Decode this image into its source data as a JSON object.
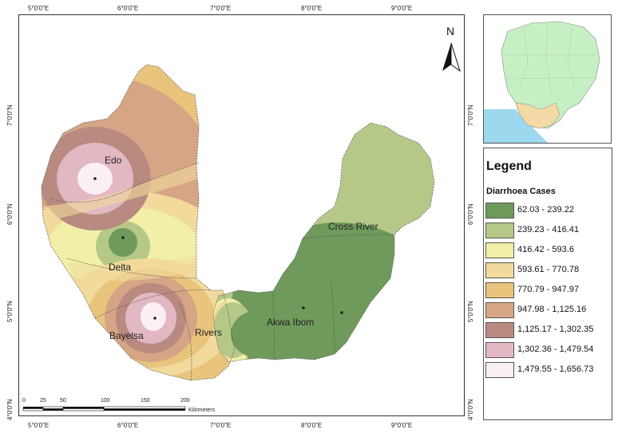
{
  "axis_ticks": {
    "top": [
      "5°0'0\"E",
      "6°0'0\"E",
      "7°0'0\"E",
      "8°0'0\"E",
      "9°0'0\"E"
    ],
    "bottom": [
      "5°0'0\"E",
      "6°0'0\"E",
      "7°0'0\"E",
      "8°0'0\"E",
      "9°0'0\"E"
    ],
    "left": [
      "7°0'0\"N",
      "6°0'0\"N",
      "5°0'0\"N",
      "4°0'0\"N"
    ],
    "right": [
      "7°0'0\"N",
      "6°0'0\"N",
      "5°0'0\"N",
      "4°0'0\"N"
    ]
  },
  "map": {
    "north_label": "N",
    "states": {
      "edo": "Edo",
      "delta": "Delta",
      "bayelsa": "Bayelsa",
      "rivers": "Rivers",
      "akwa_ibom": "Akwa Ibom",
      "cross_river": "Cross River"
    }
  },
  "scale_bar": {
    "ticks": [
      "0",
      "25",
      "50",
      "100",
      "150",
      "200"
    ],
    "unit": "Kilometers"
  },
  "legend": {
    "title": "Legend",
    "subtitle_main": "Diarrhoea",
    "subtitle_unit": "Cases",
    "classes": [
      {
        "label": "62.03 - 239.22",
        "color": "#6f9a5b"
      },
      {
        "label": "239.23 - 416.41",
        "color": "#b6c888"
      },
      {
        "label": "416.42 - 593.6",
        "color": "#f1efa8"
      },
      {
        "label": "593.61 - 770.78",
        "color": "#f1da9c"
      },
      {
        "label": "770.79 - 947.97",
        "color": "#e9c47d"
      },
      {
        "label": "947.98 - 1,125.16",
        "color": "#d5a585"
      },
      {
        "label": "1,125.17 - 1,302.35",
        "color": "#b98a7f"
      },
      {
        "label": "1,302.36 - 1,479.54",
        "color": "#e2b8c2"
      },
      {
        "label": "1,479.55 - 1,656.73",
        "color": "#fbeff6"
      }
    ]
  }
}
